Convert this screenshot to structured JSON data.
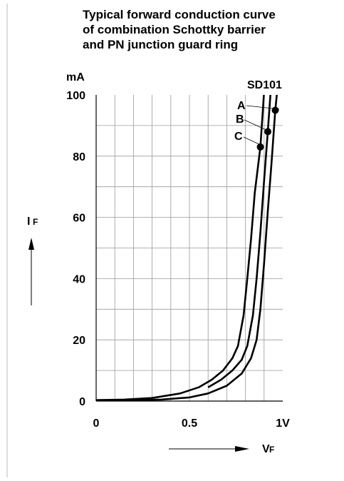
{
  "title_lines": [
    "Typical forward conduction curve",
    "of combination Schottky barrier",
    "and PN junction guard ring"
  ],
  "chart_data": {
    "type": "line",
    "title": "Typical forward conduction curve of combination Schottky barrier and PN junction guard ring",
    "device_label": "SD101",
    "xlabel_main": "V",
    "xlabel_sub": "F",
    "ylabel_main": "I",
    "ylabel_sub": "F",
    "y_unit": "mA",
    "xlim": [
      0,
      1.0
    ],
    "ylim": [
      0,
      100
    ],
    "x_ticks": [
      {
        "value": 0,
        "label": "0"
      },
      {
        "value": 0.5,
        "label": "0.5"
      },
      {
        "value": 1.0,
        "label": "1V"
      }
    ],
    "y_ticks": [
      {
        "value": 0,
        "label": "0"
      },
      {
        "value": 20,
        "label": "20"
      },
      {
        "value": 40,
        "label": "40"
      },
      {
        "value": 60,
        "label": "60"
      },
      {
        "value": 80,
        "label": "80"
      },
      {
        "value": 100,
        "label": "100"
      }
    ],
    "x_grid_step": 0.1,
    "y_grid_step": 10,
    "grid": true,
    "series": [
      {
        "name": "A",
        "marker": {
          "x": 0.96,
          "y": 95
        },
        "points": [
          [
            0,
            0.3
          ],
          [
            0.2,
            0.3
          ],
          [
            0.35,
            0.5
          ],
          [
            0.5,
            1.2
          ],
          [
            0.6,
            2.5
          ],
          [
            0.7,
            5
          ],
          [
            0.78,
            9
          ],
          [
            0.83,
            14
          ],
          [
            0.86,
            20
          ],
          [
            0.88,
            30
          ],
          [
            0.9,
            45
          ],
          [
            0.92,
            62
          ],
          [
            0.94,
            78
          ],
          [
            0.96,
            95
          ],
          [
            0.97,
            101
          ]
        ]
      },
      {
        "name": "B",
        "marker": {
          "x": 0.92,
          "y": 88
        },
        "points": [
          [
            0.6,
            4.5
          ],
          [
            0.67,
            7
          ],
          [
            0.73,
            10
          ],
          [
            0.78,
            13.5
          ],
          [
            0.81,
            18
          ],
          [
            0.84,
            28
          ],
          [
            0.86,
            40
          ],
          [
            0.88,
            55
          ],
          [
            0.9,
            72
          ],
          [
            0.92,
            88
          ],
          [
            0.935,
            101
          ]
        ]
      },
      {
        "name": "C",
        "marker": {
          "x": 0.88,
          "y": 83
        },
        "points": [
          [
            0,
            0.3
          ],
          [
            0.15,
            0.5
          ],
          [
            0.3,
            1
          ],
          [
            0.45,
            2.5
          ],
          [
            0.55,
            4.5
          ],
          [
            0.62,
            7
          ],
          [
            0.68,
            10
          ],
          [
            0.73,
            14
          ],
          [
            0.76,
            18
          ],
          [
            0.79,
            28
          ],
          [
            0.81,
            40
          ],
          [
            0.83,
            53
          ],
          [
            0.85,
            68
          ],
          [
            0.88,
            83
          ],
          [
            0.9,
            101
          ]
        ]
      }
    ]
  }
}
